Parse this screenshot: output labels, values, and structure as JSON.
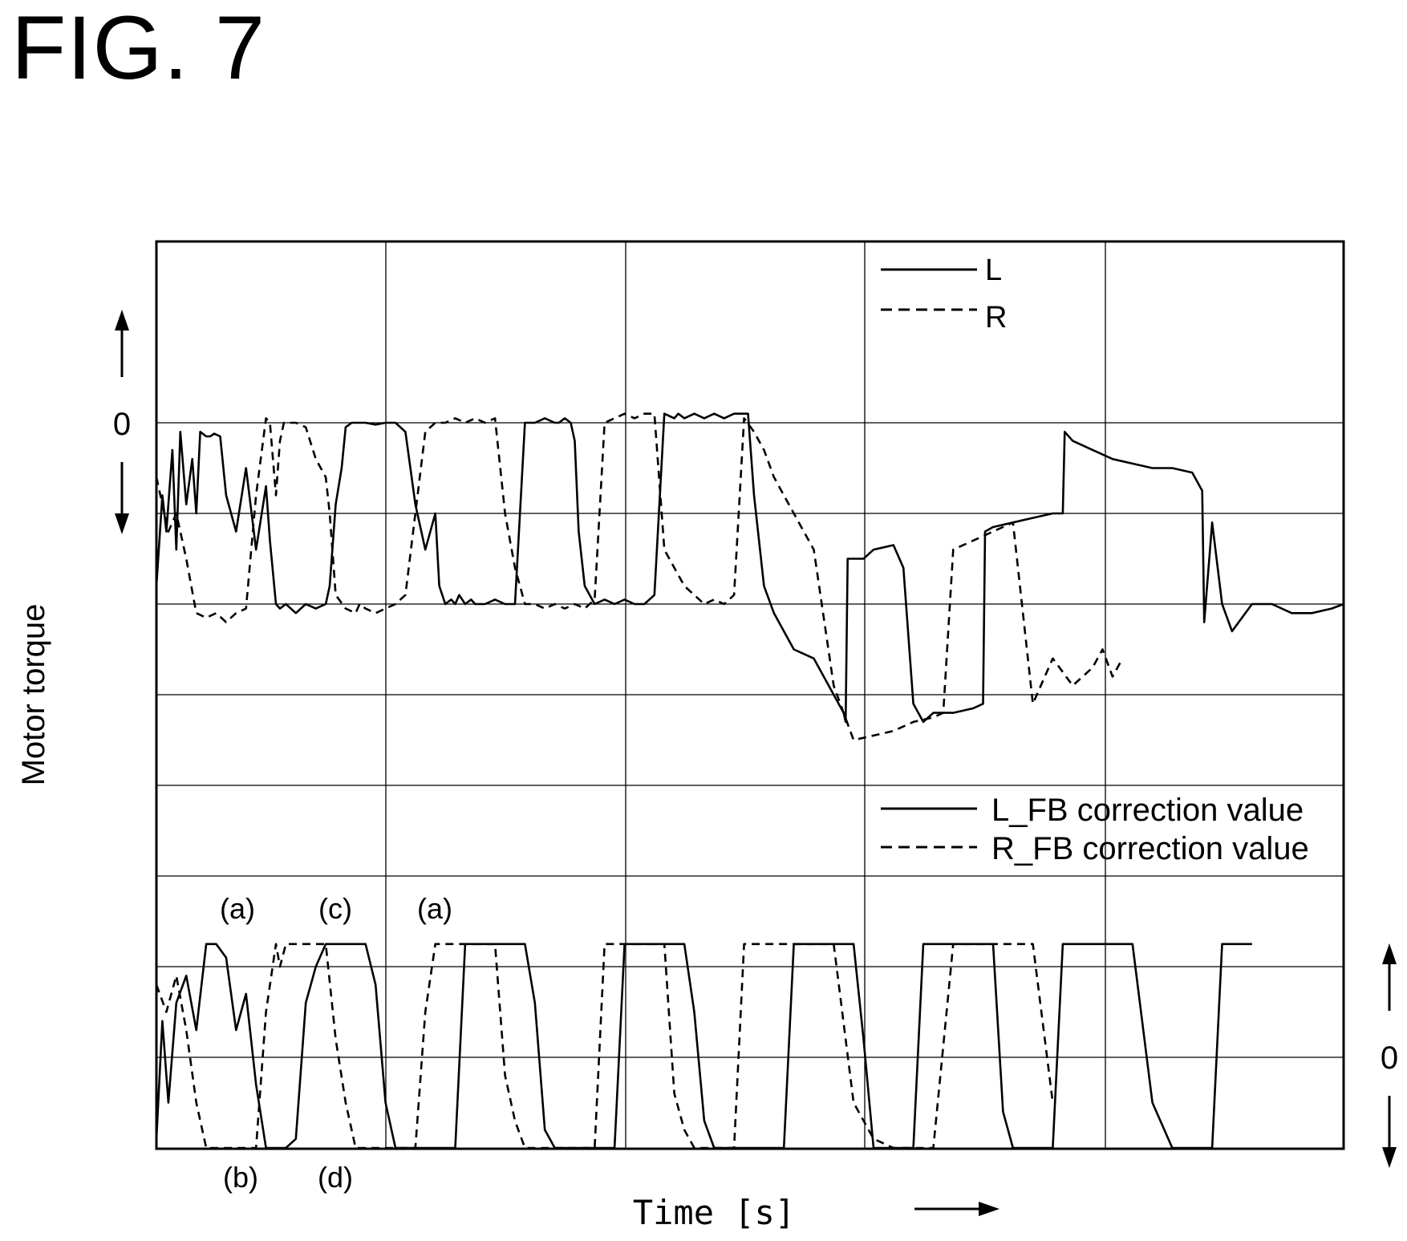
{
  "figure": {
    "title": "FIG. 7"
  },
  "chart_data": [
    {
      "type": "line",
      "panel": "motor_torque",
      "ylabel": "Motor torque",
      "xlabel": "Time [s]",
      "y_tick_label": "0",
      "grid": true,
      "legend_position": "top-right",
      "series": [
        {
          "name": "L",
          "style": "solid",
          "x": [
            0,
            0.03,
            0.05,
            0.08,
            0.1,
            0.12,
            0.15,
            0.18,
            0.2,
            0.22,
            0.25,
            0.27,
            0.29,
            0.32,
            0.35,
            0.4,
            0.45,
            0.5,
            0.55,
            0.57,
            0.6,
            0.62,
            0.65,
            0.7,
            0.75,
            0.8,
            0.85,
            0.87,
            0.9,
            0.93,
            0.95,
            0.98,
            1.0,
            1.05,
            1.1,
            1.15,
            1.2,
            1.25,
            1.3,
            1.35,
            1.4,
            1.42,
            1.45,
            1.48,
            1.5,
            1.52,
            1.55,
            1.58,
            1.6,
            1.65,
            1.7,
            1.75,
            1.8,
            1.85,
            1.9,
            1.95,
            2.0,
            2.02,
            2.05,
            2.08,
            2.1,
            2.12,
            2.15,
            2.2,
            2.25,
            2.3,
            2.35,
            2.4,
            2.45,
            2.5,
            2.55,
            2.6,
            2.62,
            2.65,
            2.7,
            2.75,
            2.8,
            2.85,
            2.9,
            2.95,
            2.97,
            3.0,
            3.05,
            3.1,
            3.2,
            3.3,
            3.4,
            3.45,
            3.46,
            3.47,
            3.5,
            3.55,
            3.6,
            3.7,
            3.75,
            3.8,
            3.85,
            3.9,
            4.0,
            4.1,
            4.15,
            4.16,
            4.2,
            4.3,
            4.4,
            4.5,
            4.55,
            4.56,
            4.6,
            4.7,
            4.8,
            4.9,
            5.0,
            5.1,
            5.2,
            5.25,
            5.26,
            5.3,
            5.35,
            5.4,
            5.5,
            5.6,
            5.7,
            5.8,
            5.9,
            5.96
          ],
          "values": [
            -1.8,
            -0.8,
            -1.2,
            -0.3,
            -1.4,
            -0.1,
            -0.9,
            -0.4,
            -1.0,
            -0.1,
            -0.15,
            -0.15,
            -0.12,
            -0.15,
            -0.8,
            -1.2,
            -0.5,
            -1.4,
            -0.7,
            -1.3,
            -2.0,
            -2.05,
            -2.0,
            -2.1,
            -2.0,
            -2.05,
            -2.0,
            -1.8,
            -0.9,
            -0.5,
            -0.05,
            0.0,
            0.0,
            0.0,
            -0.02,
            0.0,
            0.0,
            -0.1,
            -0.9,
            -1.4,
            -1.0,
            -1.8,
            -2.0,
            -1.95,
            -2.0,
            -1.9,
            -2.0,
            -1.95,
            -2.0,
            -2.0,
            -1.95,
            -2.0,
            -2.0,
            0.0,
            0.0,
            0.05,
            0.0,
            0.0,
            0.05,
            0.0,
            -0.2,
            -1.2,
            -1.8,
            -2.0,
            -1.95,
            -2.0,
            -1.95,
            -2.0,
            -2.0,
            -1.9,
            0.1,
            0.05,
            0.1,
            0.05,
            0.1,
            0.05,
            0.1,
            0.05,
            0.1,
            0.1,
            0.1,
            -0.8,
            -1.8,
            -2.1,
            -2.5,
            -2.6,
            -3.0,
            -3.2,
            -3.3,
            -1.5,
            -1.5,
            -1.5,
            -1.4,
            -1.35,
            -1.6,
            -3.1,
            -3.3,
            -3.2,
            -3.2,
            -3.15,
            -3.1,
            -1.2,
            -1.15,
            -1.1,
            -1.05,
            -1.0,
            -1.0,
            -0.1,
            -0.2,
            -0.3,
            -0.4,
            -0.45,
            -0.5,
            -0.5,
            -0.55,
            -0.75,
            -2.2,
            -1.1,
            -2.0,
            -2.3,
            -2.0,
            -2.0,
            -2.1,
            -2.1,
            -2.05,
            -2.0
          ]
        },
        {
          "name": "R",
          "style": "dashed",
          "x": [
            0,
            0.03,
            0.06,
            0.1,
            0.15,
            0.2,
            0.25,
            0.3,
            0.35,
            0.4,
            0.45,
            0.5,
            0.55,
            0.57,
            0.6,
            0.62,
            0.64,
            0.67,
            0.7,
            0.75,
            0.8,
            0.85,
            0.87,
            0.9,
            0.95,
            1.0,
            1.02,
            1.05,
            1.1,
            1.15,
            1.2,
            1.25,
            1.3,
            1.35,
            1.4,
            1.45,
            1.5,
            1.55,
            1.6,
            1.65,
            1.7,
            1.75,
            1.8,
            1.85,
            1.9,
            1.95,
            2.0,
            2.05,
            2.1,
            2.15,
            2.2,
            2.25,
            2.3,
            2.35,
            2.4,
            2.45,
            2.5,
            2.55,
            2.6,
            2.65,
            2.7,
            2.75,
            2.8,
            2.85,
            2.9,
            2.95,
            3.0,
            3.05,
            3.1,
            3.15,
            3.2,
            3.25,
            3.3,
            3.4,
            3.5,
            3.6,
            3.7,
            3.8,
            3.9,
            3.95,
            4.0,
            4.05,
            4.1,
            4.15,
            4.2,
            4.25,
            4.3,
            4.4,
            4.5,
            4.6,
            4.7,
            4.75,
            4.8,
            4.85
          ],
          "values": [
            -0.6,
            -0.9,
            -1.2,
            -1.0,
            -1.5,
            -2.1,
            -2.15,
            -2.1,
            -2.2,
            -2.1,
            -2.05,
            -0.8,
            0.05,
            0.0,
            -0.8,
            -0.2,
            0.0,
            0.0,
            0.0,
            -0.05,
            -0.4,
            -0.6,
            -1.0,
            -1.9,
            -2.05,
            -2.1,
            -2.0,
            -2.05,
            -2.1,
            -2.05,
            -2.0,
            -1.9,
            -1.0,
            -0.1,
            0.0,
            0.0,
            0.05,
            0.0,
            0.05,
            0.0,
            0.05,
            -1.0,
            -1.6,
            -2.0,
            -2.0,
            -2.05,
            -2.0,
            -2.05,
            -2.0,
            -2.05,
            -1.95,
            0.0,
            0.05,
            0.1,
            0.05,
            0.1,
            0.1,
            -1.4,
            -1.6,
            -1.8,
            -1.9,
            -2.0,
            -1.95,
            -2.0,
            -1.9,
            0.05,
            -0.1,
            -0.3,
            -0.6,
            -0.8,
            -1.0,
            -1.2,
            -1.4,
            -2.9,
            -3.5,
            -3.45,
            -3.4,
            -3.3,
            -3.25,
            -3.2,
            -1.4,
            -1.35,
            -1.3,
            -1.25,
            -1.2,
            -1.15,
            -1.1,
            -3.1,
            -2.6,
            -2.9,
            -2.7,
            -2.5,
            -2.8,
            -2.6
          ]
        }
      ]
    },
    {
      "type": "line",
      "panel": "fb_correction",
      "y_tick_label": "0",
      "grid": true,
      "legend_position": "top-right",
      "series": [
        {
          "name": "L_FB correction value",
          "style": "solid",
          "x": [
            0,
            0.03,
            0.06,
            0.1,
            0.15,
            0.2,
            0.25,
            0.27,
            0.3,
            0.35,
            0.4,
            0.45,
            0.5,
            0.55,
            0.58,
            0.6,
            0.65,
            0.7,
            0.75,
            0.8,
            0.85,
            0.9,
            0.95,
            1.0,
            1.05,
            1.1,
            1.15,
            1.2,
            1.25,
            1.3,
            1.35,
            1.4,
            1.45,
            1.5,
            1.55,
            1.6,
            1.65,
            1.7,
            1.75,
            1.8,
            1.85,
            1.9,
            1.95,
            2.0,
            2.05,
            2.1,
            2.15,
            2.2,
            2.25,
            2.3,
            2.35,
            2.4,
            2.45,
            2.5,
            2.55,
            2.6,
            2.65,
            2.7,
            2.75,
            2.8,
            2.85,
            2.9,
            2.95,
            3.0,
            3.05,
            3.1,
            3.15,
            3.2,
            3.25,
            3.3,
            3.4,
            3.5,
            3.55,
            3.6,
            3.7,
            3.75,
            3.8,
            3.85,
            3.9,
            4.0,
            4.1,
            4.2,
            4.25,
            4.3,
            4.4,
            4.5,
            4.55,
            4.6,
            4.7,
            4.8,
            4.9,
            5.0,
            5.1,
            5.2,
            5.25,
            5.3,
            5.35,
            5.4,
            5.5
          ],
          "values": [
            -0.9,
            0.4,
            -0.5,
            0.6,
            0.9,
            0.3,
            1.25,
            1.25,
            1.25,
            1.1,
            0.3,
            0.7,
            -0.3,
            -1.0,
            -1.0,
            -1.0,
            -1.0,
            -0.9,
            0.6,
            1.0,
            1.25,
            1.25,
            1.25,
            1.25,
            1.25,
            0.8,
            -0.5,
            -1.0,
            -1.0,
            -1.0,
            -1.0,
            -1.0,
            -1.0,
            -1.0,
            1.25,
            1.25,
            1.25,
            1.25,
            1.25,
            1.25,
            1.25,
            0.6,
            -0.8,
            -1.0,
            -1.0,
            -1.0,
            -1.0,
            -1.0,
            -1.0,
            -1.0,
            1.25,
            1.25,
            1.25,
            1.25,
            1.25,
            1.25,
            1.25,
            0.5,
            -0.7,
            -1.0,
            -1.0,
            -1.0,
            -1.0,
            -1.0,
            -1.0,
            -1.0,
            -1.0,
            1.25,
            1.25,
            1.25,
            1.25,
            1.25,
            0.2,
            -1.0,
            -1.0,
            -1.0,
            -1.0,
            1.25,
            1.25,
            1.25,
            1.25,
            1.25,
            -0.6,
            -1.0,
            -1.0,
            -1.0,
            1.25,
            1.25,
            1.25,
            1.25,
            1.25,
            -0.5,
            -1.0,
            -1.0,
            -1.0,
            -1.0,
            1.25,
            1.25,
            1.25
          ]
        },
        {
          "name": "R_FB correction value",
          "style": "dashed",
          "x": [
            0,
            0.05,
            0.1,
            0.15,
            0.2,
            0.25,
            0.3,
            0.35,
            0.4,
            0.45,
            0.5,
            0.55,
            0.6,
            0.62,
            0.65,
            0.7,
            0.75,
            0.8,
            0.85,
            0.9,
            0.95,
            1.0,
            1.05,
            1.1,
            1.15,
            1.2,
            1.25,
            1.3,
            1.35,
            1.4,
            1.45,
            1.5,
            1.55,
            1.6,
            1.65,
            1.7,
            1.75,
            1.8,
            1.85,
            1.9,
            1.95,
            2.0,
            2.05,
            2.1,
            2.15,
            2.2,
            2.25,
            2.3,
            2.35,
            2.4,
            2.45,
            2.5,
            2.55,
            2.6,
            2.65,
            2.7,
            2.75,
            2.8,
            2.85,
            2.9,
            2.95,
            3.0,
            3.05,
            3.1,
            3.2,
            3.3,
            3.4,
            3.5,
            3.6,
            3.7,
            3.8,
            3.9,
            4.0,
            4.1,
            4.2,
            4.3,
            4.4,
            4.5
          ],
          "values": [
            0.8,
            0.5,
            0.9,
            0.3,
            -0.5,
            -1.0,
            -1.0,
            -1.0,
            -1.0,
            -1.0,
            -1.0,
            0.5,
            1.25,
            1.0,
            1.25,
            1.25,
            1.25,
            1.25,
            1.25,
            0.2,
            -0.5,
            -1.0,
            -1.0,
            -1.0,
            -1.0,
            -1.0,
            -1.0,
            -1.0,
            0.5,
            1.25,
            1.25,
            1.25,
            1.25,
            1.25,
            1.25,
            1.25,
            -0.2,
            -0.7,
            -1.0,
            -1.0,
            -1.0,
            -1.0,
            -1.0,
            -1.0,
            -1.0,
            -1.0,
            1.25,
            1.25,
            1.25,
            1.25,
            1.25,
            1.25,
            1.25,
            -0.4,
            -0.8,
            -1.0,
            -1.0,
            -1.0,
            -1.0,
            -1.0,
            1.25,
            1.25,
            1.25,
            1.25,
            1.25,
            1.25,
            1.25,
            -0.5,
            -0.9,
            -1.0,
            -1.0,
            -1.0,
            1.25,
            1.25,
            1.25,
            1.25,
            1.25,
            -0.5
          ]
        }
      ],
      "annotations": [
        "(a)",
        "(c)",
        "(a)",
        "(b)",
        "(d)"
      ]
    }
  ]
}
